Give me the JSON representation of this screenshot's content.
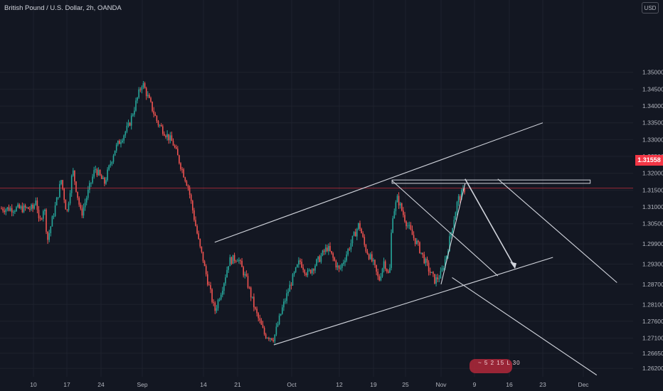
{
  "header": {
    "title": "British Pound / U.S. Dollar, 2h, OANDA",
    "currency": "USD"
  },
  "current_price": "1.31558",
  "colors": {
    "background": "#131722",
    "grid": "#1e222d",
    "up": "#26a69a",
    "down": "#ef5350",
    "price_line": "#f23645",
    "drawing": "#d1d4dc",
    "axis_text": "#b2b5be"
  },
  "watermark_text": "~ 5 2 15 L 30",
  "chart_data": {
    "type": "candlestick",
    "symbol": "GBPUSD",
    "interval": "2h",
    "source": "OANDA",
    "ylim": [
      1.2595,
      1.3715
    ],
    "y_ticks": [
      "1.35000",
      "1.34500",
      "1.34000",
      "1.33500",
      "1.33000",
      "1.32500",
      "1.32000",
      "1.31500",
      "1.31000",
      "1.30500",
      "1.29900",
      "1.29300",
      "1.28700",
      "1.28100",
      "1.27600",
      "1.27100",
      "1.26650",
      "1.26200"
    ],
    "x_ticks": [
      {
        "label": "10",
        "slot": 0
      },
      {
        "label": "17",
        "slot": 1
      },
      {
        "label": "24",
        "slot": 2
      },
      {
        "label": "Sep",
        "slot": 3
      },
      {
        "label": "14",
        "slot": 4
      },
      {
        "label": "21",
        "slot": 5
      },
      {
        "label": "Oct",
        "slot": 6
      },
      {
        "label": "12",
        "slot": 7
      },
      {
        "label": "19",
        "slot": 8
      },
      {
        "label": "25",
        "slot": 9
      },
      {
        "label": "Nov",
        "slot": 10
      },
      {
        "label": "9",
        "slot": 11
      },
      {
        "label": "16",
        "slot": 12
      },
      {
        "label": "23",
        "slot": 13
      },
      {
        "label": "Dec",
        "slot": 14
      }
    ],
    "price_path": [
      [
        0,
        1.3095
      ],
      [
        0.08,
        1.313
      ],
      [
        0.17,
        1.3045
      ],
      [
        0.32,
        1.3105
      ],
      [
        0.42,
        1.3
      ],
      [
        0.58,
        1.307
      ],
      [
        0.72,
        1.313
      ],
      [
        0.83,
        1.318
      ],
      [
        1.0,
        1.308
      ],
      [
        1.17,
        1.321
      ],
      [
        1.42,
        1.3075
      ],
      [
        1.58,
        1.313
      ],
      [
        1.83,
        1.3215
      ],
      [
        2.08,
        1.317
      ],
      [
        2.33,
        1.327
      ],
      [
        2.67,
        1.334
      ],
      [
        3.0,
        1.347
      ],
      [
        3.25,
        1.335
      ],
      [
        3.5,
        1.329
      ],
      [
        3.75,
        1.316
      ],
      [
        3.94,
        1.298
      ],
      [
        4.03,
        1.292
      ],
      [
        4.17,
        1.286
      ],
      [
        4.33,
        1.279
      ],
      [
        4.58,
        1.287
      ],
      [
        4.75,
        1.294
      ],
      [
        5.0,
        1.295
      ],
      [
        5.17,
        1.288
      ],
      [
        5.33,
        1.279
      ],
      [
        5.5,
        1.272
      ],
      [
        5.67,
        1.271
      ],
      [
        5.83,
        1.28
      ],
      [
        6.0,
        1.288
      ],
      [
        6.17,
        1.294
      ],
      [
        6.33,
        1.29
      ],
      [
        6.5,
        1.293
      ],
      [
        6.75,
        1.298
      ],
      [
        7.0,
        1.291
      ],
      [
        7.33,
        1.299
      ],
      [
        7.58,
        1.305
      ],
      [
        7.75,
        1.298
      ],
      [
        8.0,
        1.293
      ],
      [
        8.17,
        1.288
      ],
      [
        8.33,
        1.294
      ],
      [
        8.5,
        1.289
      ],
      [
        8.58,
        1.307
      ],
      [
        8.75,
        1.3125
      ],
      [
        9.0,
        1.306
      ],
      [
        9.17,
        1.302
      ],
      [
        9.33,
        1.299
      ],
      [
        9.5,
        1.295
      ],
      [
        9.67,
        1.291
      ],
      [
        9.83,
        1.288
      ],
      [
        10.0,
        1.29
      ],
      [
        10.17,
        1.296
      ],
      [
        10.33,
        1.304
      ],
      [
        10.5,
        1.312
      ],
      [
        10.72,
        1.3155
      ]
    ],
    "drawings": {
      "upper_channel_line": [
        [
          4.33,
          1.2995
        ],
        [
          13.0,
          1.335
        ]
      ],
      "lower_channel_line": [
        [
          5.67,
          1.269
        ],
        [
          13.25,
          1.295
        ]
      ],
      "resistance_box": [
        [
          8.58,
          1.318
        ],
        [
          14.17,
          1.317
        ]
      ],
      "pitch_top_rays": [
        [
          8.58,
          1.3178
        ],
        [
          11.67,
          1.2895
        ],
        [
          11.67,
          1.3183
        ],
        [
          14.83,
          1.2875
        ]
      ],
      "pitch_bottom_ray": [
        [
          10.33,
          1.289
        ],
        [
          14.33,
          1.26
        ]
      ],
      "arrow_path": [
        [
          10.72,
          1.3183
        ],
        [
          12.17,
          1.292
        ]
      ],
      "channel_connector": [
        [
          10.0,
          1.287
        ],
        [
          10.72,
          1.317
        ]
      ]
    }
  }
}
